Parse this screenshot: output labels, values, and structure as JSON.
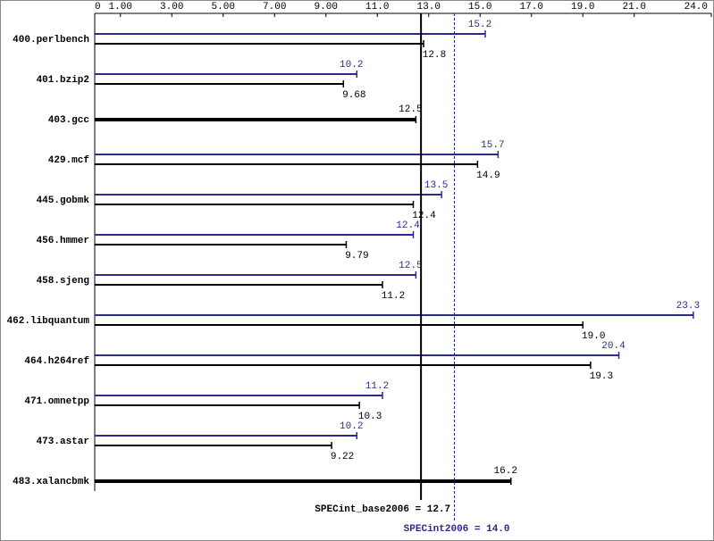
{
  "chart_data": {
    "type": "bar",
    "orientation": "horizontal",
    "categories": [
      "400.perlbench",
      "401.bzip2",
      "403.gcc",
      "429.mcf",
      "445.gobmk",
      "456.hmmer",
      "458.sjeng",
      "462.libquantum",
      "464.h264ref",
      "471.omnetpp",
      "473.astar",
      "483.xalancbmk"
    ],
    "series": [
      {
        "color": "#2b2b8c",
        "values": [
          15.2,
          10.2,
          null,
          15.7,
          13.5,
          12.4,
          12.5,
          23.3,
          20.4,
          11.2,
          10.2,
          null
        ]
      },
      {
        "color": "#000000",
        "values": [
          12.8,
          9.68,
          12.5,
          14.9,
          12.4,
          9.79,
          11.2,
          19.0,
          19.3,
          10.3,
          9.22,
          16.2
        ],
        "value_labels": [
          "12.8",
          "9.68",
          "12.5",
          "14.9",
          "12.4",
          "9.79",
          "11.2",
          "19.0",
          "19.3",
          "10.3",
          "9.22",
          "16.2"
        ]
      }
    ],
    "xlim": [
      0,
      24
    ],
    "xticks": [
      0,
      {
        "value": 1,
        "label": "1.00"
      },
      {
        "value": 3,
        "label": "3.00"
      },
      {
        "value": 5,
        "label": "5.00"
      },
      {
        "value": 7,
        "label": "7.00"
      },
      {
        "value": 9,
        "label": "9.00"
      },
      {
        "value": 11,
        "label": "11.0"
      },
      {
        "value": 13,
        "label": "13.0"
      },
      {
        "value": 15,
        "label": "15.0"
      },
      {
        "value": 17,
        "label": "17.0"
      },
      {
        "value": 19,
        "label": "19.0"
      },
      {
        "value": 21,
        "label": "21.0"
      },
      {
        "value": 24,
        "label": "24.0"
      }
    ],
    "reference_lines": [
      {
        "text": "SPECint_base2006 = 12.7",
        "value": 12.7,
        "color": "#000000",
        "dashed": false
      },
      {
        "text": "SPECint2006 = 14.0",
        "value": 14.0,
        "color": "#2b2b8c",
        "dashed": true
      }
    ]
  }
}
